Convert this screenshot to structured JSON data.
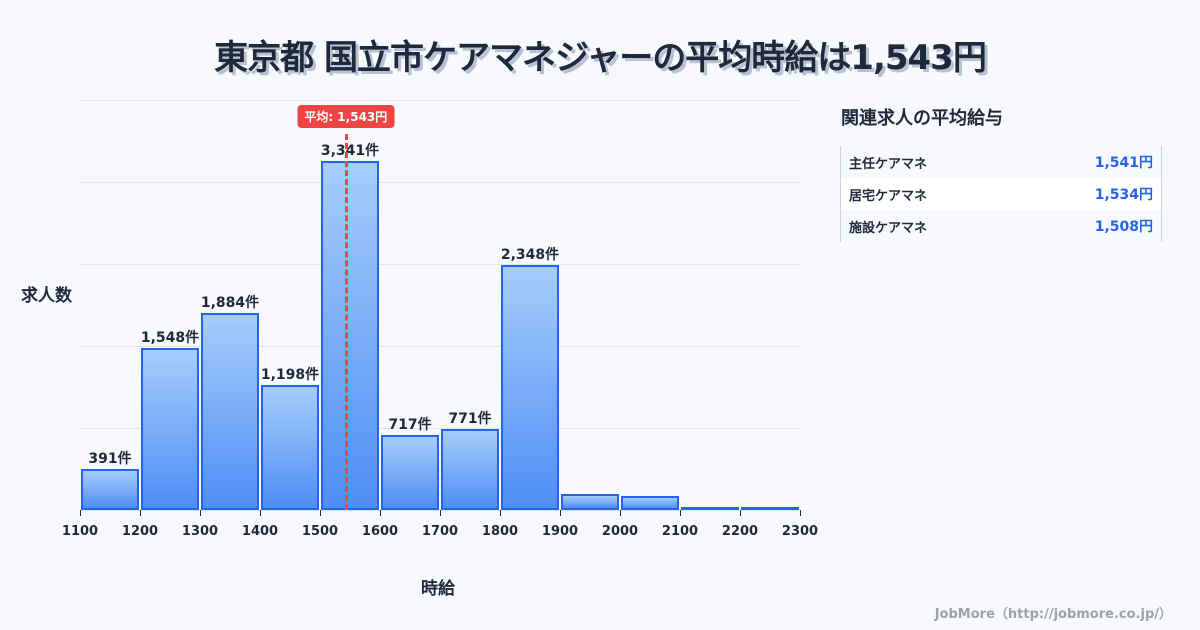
{
  "title": "東京都 国立市ケアマネジャーの平均時給は1,543円",
  "axes": {
    "ylabel": "求人数",
    "xlabel": "時給"
  },
  "mean": {
    "label": "平均: 1,543円",
    "value": 1543,
    "color": "#ef4444"
  },
  "side_panel": {
    "title": "関連求人の平均給与",
    "rows": [
      {
        "name": "主任ケアマネ",
        "value": "1,541円"
      },
      {
        "name": "居宅ケアマネ",
        "value": "1,534円"
      },
      {
        "name": "施設ケアマネ",
        "value": "1,508円"
      }
    ]
  },
  "footer": "JobMore（http://jobmore.co.jp/）",
  "colors": {
    "bar_border": "#2563eb",
    "bar_top": "#a6cdfb",
    "bar_bottom": "#4f8ef5",
    "accent_value": "#2563eb",
    "mean_line": "#ef4444"
  },
  "chart_data": {
    "type": "bar",
    "title": "東京都 国立市ケアマネジャーの平均時給は1,543円",
    "xlabel": "時給",
    "ylabel": "求人数",
    "x_ticks": [
      "1100",
      "1200",
      "1300",
      "1400",
      "1500",
      "1600",
      "1700",
      "1800",
      "1900",
      "2000",
      "2100",
      "2200",
      "2300"
    ],
    "categories": [
      "1100-1200",
      "1200-1300",
      "1300-1400",
      "1400-1500",
      "1500-1600",
      "1600-1700",
      "1700-1800",
      "1800-1900",
      "1900-2000",
      "2000-2100",
      "2100-2200",
      "2200-2300"
    ],
    "values": [
      391,
      1548,
      1884,
      1198,
      3341,
      717,
      771,
      2348,
      155,
      130,
      25,
      25
    ],
    "value_labels": [
      "391件",
      "1,548件",
      "1,884件",
      "1,198件",
      "3,341件",
      "717件",
      "771件",
      "2,348件",
      "",
      "",
      "",
      ""
    ],
    "mean_line": {
      "x": 1543,
      "label": "平均: 1,543円"
    },
    "xlim": [
      1100,
      2300
    ],
    "ylim": [
      0,
      3925
    ],
    "grid": true,
    "legend": null
  }
}
